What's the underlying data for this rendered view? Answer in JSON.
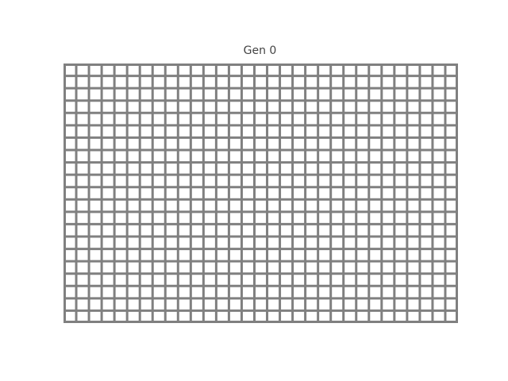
{
  "title": "Gen 0",
  "colors": {
    "background": "#ffffff",
    "grid_line": "#808080",
    "dead_cell": "#ffffff",
    "alive_cell": "#000000"
  },
  "board": {
    "columns": 31,
    "rows": 21,
    "generation": 0,
    "alive_cells": []
  }
}
